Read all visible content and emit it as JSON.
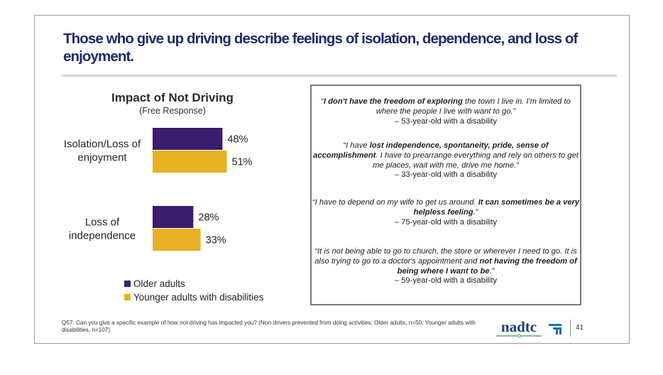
{
  "slide": {
    "title": "Those who give up driving describe feelings of isolation, dependence, and loss of enjoyment.",
    "footnote": "Q57: Can you give a specific example of how not driving has impacted you? (Non-drivers prevented from doing activities: Older adults, n=50; Younger adults with disabilities, n=107)",
    "logo_text": "nadtc",
    "page_number": "41"
  },
  "chart_data": {
    "type": "bar",
    "orientation": "horizontal",
    "title": "Impact of Not Driving",
    "subtitle": "(Free Response)",
    "categories": [
      "Isolation/Loss of enjoyment",
      "Loss of independence"
    ],
    "category_lines": [
      [
        "Isolation/Loss of",
        "enjoyment"
      ],
      [
        "Loss of",
        "independence"
      ]
    ],
    "series": [
      {
        "name": "Older adults",
        "values": [
          48,
          28
        ],
        "labels": [
          "48%",
          "28%"
        ],
        "color": "#3a1d6e"
      },
      {
        "name": "Younger adults with disabilities",
        "values": [
          51,
          33
        ],
        "labels": [
          "51%",
          "33%"
        ],
        "color": "#e8b123"
      }
    ],
    "xlim": [
      0,
      100
    ],
    "legend_position": "bottom-left",
    "grid": false
  },
  "quotes": [
    {
      "parts": [
        {
          "text": "“",
          "style": "q"
        },
        {
          "text": "I don't have the freedom of exploring",
          "style": "b"
        },
        {
          "text": " the town I live in. I'm limited to where the people I live with want to go.”",
          "style": "q"
        }
      ],
      "attribution": "– 53-year-old with a disability"
    },
    {
      "parts": [
        {
          "text": "“I have ",
          "style": "q"
        },
        {
          "text": "lost independence, spontaneity, pride, sense of accomplishment",
          "style": "b"
        },
        {
          "text": ". I have to prearrange everything and rely on others to get me places, wait with me, drive me home.”",
          "style": "q"
        }
      ],
      "attribution": "– 33-year-old with a disability"
    },
    {
      "parts": [
        {
          "text": "“I have to depend on my wife to get us around. ",
          "style": "q"
        },
        {
          "text": "It can sometimes be a very helpless feeling",
          "style": "b"
        },
        {
          "text": ".”",
          "style": "q"
        }
      ],
      "attribution": "– 75-year-old with a disability"
    },
    {
      "parts": [
        {
          "text": "“It is not being able to go to church, the store or wherever I need to go. It is also trying to go to a doctor's appointment and ",
          "style": "q"
        },
        {
          "text": "not having the freedom of being where I want to be",
          "style": "b"
        },
        {
          "text": ".”",
          "style": "q"
        }
      ],
      "attribution": "– 59-year-old with a disability"
    }
  ]
}
